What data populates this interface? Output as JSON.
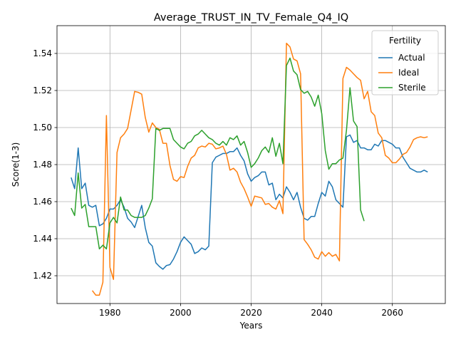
{
  "chart_data": {
    "type": "line",
    "title": "Average_TRUST_IN_TV_Female_Q4_IQ",
    "xlabel": "Years",
    "ylabel": "Score(1-3)",
    "xlim": [
      1965,
      2075
    ],
    "ylim": [
      1.405,
      1.555
    ],
    "xticks": [
      1980,
      2000,
      2020,
      2040,
      2060
    ],
    "yticks": [
      1.42,
      1.44,
      1.46,
      1.48,
      1.5,
      1.52,
      1.54
    ],
    "ytick_labels": [
      "1.42",
      "1.44",
      "1.46",
      "1.48",
      "1.50",
      "1.52",
      "1.54"
    ],
    "grid": true,
    "legend": {
      "title": "Fertility",
      "placement": "top-right"
    },
    "series": [
      {
        "name": "Actual",
        "color": "#1f77b4",
        "x": [
          1969,
          1970,
          1971,
          1972,
          1973,
          1974,
          1975,
          1976,
          1977,
          1978,
          1979,
          1980,
          1981,
          1982,
          1983,
          1984,
          1985,
          1986,
          1987,
          1988,
          1989,
          1990,
          1991,
          1992,
          1993,
          1994,
          1995,
          1996,
          1997,
          1998,
          1999,
          2000,
          2001,
          2002,
          2003,
          2004,
          2005,
          2006,
          2007,
          2008,
          2009,
          2010,
          2011,
          2012,
          2013,
          2014,
          2015,
          2016,
          2017,
          2018,
          2019,
          2020,
          2021,
          2022,
          2023,
          2024,
          2025,
          2026,
          2027,
          2028,
          2029,
          2030,
          2031,
          2032,
          2033,
          2034,
          2035,
          2036,
          2037,
          2038,
          2039,
          2040,
          2041,
          2042,
          2043,
          2044,
          2045,
          2046,
          2047,
          2048,
          2049,
          2050,
          2051,
          2052,
          2053,
          2054,
          2055,
          2056,
          2057,
          2058,
          2059,
          2060,
          2061,
          2062,
          2063,
          2064,
          2065,
          2066,
          2067,
          2068,
          2069,
          2070
        ],
        "y": [
          1.473,
          1.467,
          1.489,
          1.467,
          1.47,
          1.458,
          1.457,
          1.458,
          1.447,
          1.448,
          1.451,
          1.456,
          1.456,
          1.458,
          1.461,
          1.457,
          1.451,
          1.449,
          1.446,
          1.452,
          1.458,
          1.446,
          1.438,
          1.436,
          1.427,
          1.425,
          1.4235,
          1.4255,
          1.426,
          1.429,
          1.433,
          1.438,
          1.441,
          1.439,
          1.437,
          1.432,
          1.433,
          1.435,
          1.434,
          1.436,
          1.481,
          1.484,
          1.485,
          1.486,
          1.486,
          1.487,
          1.487,
          1.489,
          1.485,
          1.482,
          1.475,
          1.471,
          1.473,
          1.474,
          1.476,
          1.476,
          1.469,
          1.47,
          1.461,
          1.464,
          1.462,
          1.468,
          1.465,
          1.461,
          1.465,
          1.457,
          1.451,
          1.45,
          1.452,
          1.452,
          1.459,
          1.465,
          1.463,
          1.471,
          1.468,
          1.461,
          1.459,
          1.457,
          1.495,
          1.496,
          1.492,
          1.493,
          1.489,
          1.489,
          1.488,
          1.488,
          1.491,
          1.49,
          1.493,
          1.493,
          1.492,
          1.491,
          1.489,
          1.489,
          1.484,
          1.481,
          1.478,
          1.477,
          1.476,
          1.476,
          1.477,
          1.476
        ]
      },
      {
        "name": "Ideal",
        "color": "#ff7f0e",
        "x": [
          1975,
          1976,
          1977,
          1978,
          1979,
          1980,
          1981,
          1982,
          1983,
          1984,
          1985,
          1986,
          1987,
          1988,
          1989,
          1990,
          1991,
          1992,
          1993,
          1994,
          1995,
          1996,
          1997,
          1998,
          1999,
          2000,
          2001,
          2002,
          2003,
          2004,
          2005,
          2006,
          2007,
          2008,
          2009,
          2010,
          2011,
          2012,
          2013,
          2014,
          2015,
          2016,
          2017,
          2018,
          2019,
          2020,
          2021,
          2022,
          2023,
          2024,
          2025,
          2026,
          2027,
          2028,
          2029,
          2030,
          2031,
          2032,
          2033,
          2034,
          2035,
          2036,
          2037,
          2038,
          2039,
          2040,
          2041,
          2042,
          2043,
          2044,
          2045,
          2046,
          2047,
          2048,
          2049,
          2050,
          2051,
          2052,
          2053,
          2054,
          2055,
          2056,
          2057,
          2058,
          2059,
          2060,
          2061,
          2062,
          2063,
          2064,
          2065,
          2066,
          2067,
          2068,
          2069,
          2070
        ],
        "y": [
          1.412,
          1.4095,
          1.4095,
          1.4165,
          1.5065,
          1.4245,
          1.418,
          1.4865,
          1.4945,
          1.4965,
          1.4995,
          1.5095,
          1.5195,
          1.519,
          1.518,
          1.5055,
          1.4975,
          1.5025,
          1.5,
          1.499,
          1.4915,
          1.4915,
          1.4795,
          1.472,
          1.471,
          1.4735,
          1.473,
          1.479,
          1.4835,
          1.485,
          1.489,
          1.49,
          1.4895,
          1.4915,
          1.491,
          1.4885,
          1.489,
          1.49,
          1.4855,
          1.477,
          1.478,
          1.476,
          1.4705,
          1.467,
          1.4625,
          1.4575,
          1.463,
          1.4625,
          1.462,
          1.4585,
          1.459,
          1.457,
          1.456,
          1.4605,
          1.4535,
          1.5455,
          1.5435,
          1.537,
          1.536,
          1.529,
          1.4395,
          1.437,
          1.434,
          1.43,
          1.429,
          1.433,
          1.4305,
          1.4325,
          1.4305,
          1.4315,
          1.428,
          1.5265,
          1.5325,
          1.531,
          1.529,
          1.527,
          1.5255,
          1.5155,
          1.5195,
          1.5085,
          1.5065,
          1.497,
          1.4945,
          1.485,
          1.4835,
          1.481,
          1.481,
          1.483,
          1.4855,
          1.4865,
          1.4895,
          1.4935,
          1.4945,
          1.495,
          1.4945,
          1.495
        ]
      },
      {
        "name": "Sterile",
        "color": "#2ca02c",
        "x": [
          1969,
          1970,
          1971,
          1972,
          1973,
          1974,
          1975,
          1976,
          1977,
          1978,
          1979,
          1980,
          1981,
          1982,
          1983,
          1984,
          1985,
          1986,
          1987,
          1988,
          1989,
          1990,
          1991,
          1992,
          1993,
          1994,
          1995,
          1996,
          1997,
          1998,
          1999,
          2000,
          2001,
          2002,
          2003,
          2004,
          2005,
          2006,
          2007,
          2008,
          2009,
          2010,
          2011,
          2012,
          2013,
          2014,
          2015,
          2016,
          2017,
          2018,
          2019,
          2020,
          2021,
          2022,
          2023,
          2024,
          2025,
          2026,
          2027,
          2028,
          2029,
          2030,
          2031,
          2032,
          2033,
          2034,
          2035,
          2036,
          2037,
          2038,
          2039,
          2040,
          2041,
          2042,
          2043,
          2044,
          2045,
          2046,
          2047,
          2048,
          2049,
          2050,
          2051,
          2052
        ],
        "y": [
          1.4565,
          1.4525,
          1.4755,
          1.4565,
          1.4585,
          1.4465,
          1.4465,
          1.4465,
          1.4345,
          1.4365,
          1.4345,
          1.4485,
          1.4515,
          1.4485,
          1.4625,
          1.4555,
          1.4555,
          1.4525,
          1.4515,
          1.4515,
          1.4515,
          1.4525,
          1.4565,
          1.4615,
          1.4995,
          1.4985,
          1.4995,
          1.4995,
          1.4995,
          1.4935,
          1.4915,
          1.4895,
          1.4885,
          1.4915,
          1.4925,
          1.4955,
          1.4965,
          1.4985,
          1.4965,
          1.4945,
          1.4935,
          1.4915,
          1.4905,
          1.4925,
          1.4905,
          1.4945,
          1.4935,
          1.4955,
          1.4905,
          1.4925,
          1.4865,
          1.4785,
          1.4805,
          1.4835,
          1.4875,
          1.4895,
          1.4865,
          1.4945,
          1.4845,
          1.4915,
          1.4805,
          1.5335,
          1.5375,
          1.5305,
          1.5285,
          1.5205,
          1.5185,
          1.5195,
          1.5165,
          1.5115,
          1.5175,
          1.5075,
          1.4875,
          1.4775,
          1.4805,
          1.4805,
          1.4825,
          1.4835,
          1.4985,
          1.5215,
          1.5035,
          1.5005,
          1.4555,
          1.4495
        ]
      }
    ]
  }
}
